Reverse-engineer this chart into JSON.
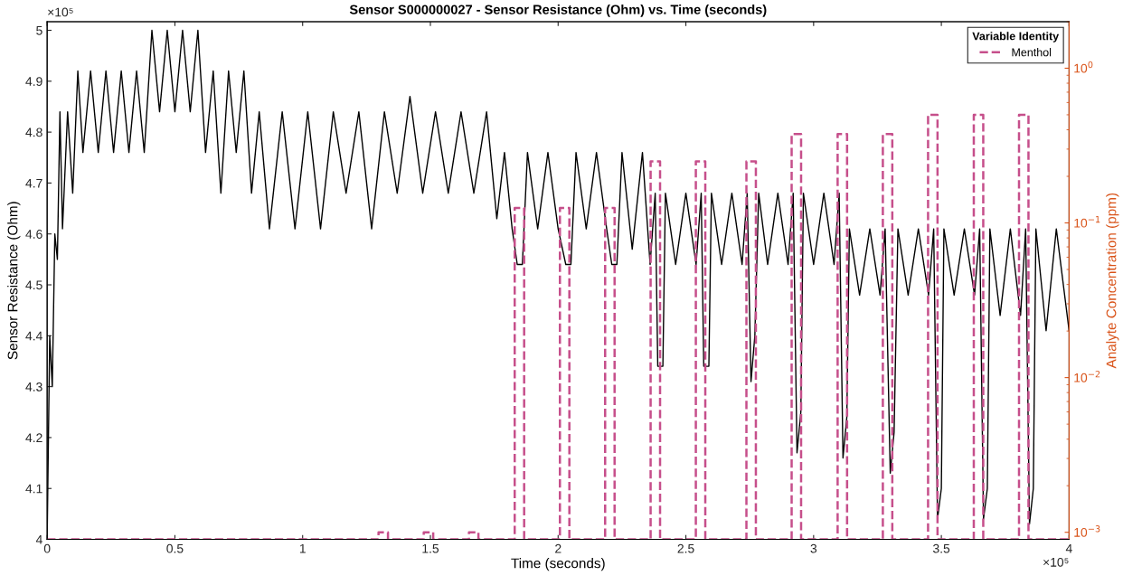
{
  "chart_data": {
    "type": "line",
    "title": "Sensor S000000027 - Sensor Resistance (Ohm) vs. Time (seconds)",
    "xlabel": "Time (seconds)",
    "ylabel": "Sensor Resistance (Ohm)",
    "y2label": "Analyte Concentration (ppm)",
    "legend_title": "Variable Identity",
    "legend": "top right",
    "grid": false,
    "log": "y2",
    "annotations": [
      "×10⁵",
      "×10⁵"
    ],
    "xlim": [
      0,
      4
    ],
    "xticks": [
      0,
      0.5,
      1,
      1.5,
      2,
      2.5,
      3,
      3.5,
      4
    ],
    "ylim": [
      4,
      5.017
    ],
    "yticks": [
      4,
      4.1,
      4.2,
      4.3,
      4.4,
      4.5,
      4.6,
      4.7,
      4.8,
      4.9,
      5
    ],
    "y2lim": [
      0.0009,
      2
    ],
    "y2ticks": [
      {
        "value": 0.001,
        "label": "10$^{−3}$"
      },
      {
        "value": 0.01,
        "label": "10$^{−2}$"
      },
      {
        "value": 0.1,
        "label": "10$^{−1}$"
      },
      {
        "value": 1,
        "label": "10$^{0}$"
      }
    ],
    "series": [
      {
        "color": "#000000",
        "line_style": "solid",
        "x": [
          0,
          0.01,
          0.02,
          0.03,
          0.04,
          0.05,
          0.06,
          0.08,
          0.1,
          0.12,
          0.14,
          0.17,
          0.2,
          0.23,
          0.26,
          0.29,
          0.32,
          0.35,
          0.38,
          0.41,
          0.44,
          0.47,
          0.5,
          0.53,
          0.56,
          0.59,
          0.62,
          0.65,
          0.68,
          0.71,
          0.74,
          0.77,
          0.8,
          0.83,
          0.87,
          0.92,
          0.97,
          1.02,
          1.07,
          1.12,
          1.17,
          1.22,
          1.27,
          1.32,
          1.37,
          1.42,
          1.47,
          1.52,
          1.57,
          1.62,
          1.67,
          1.72,
          1.76,
          1.79,
          1.82,
          1.84,
          1.86,
          1.88,
          1.92,
          1.96,
          2.0,
          2.03,
          2.05,
          2.07,
          2.11,
          2.15,
          2.19,
          2.21,
          2.23,
          2.25,
          2.29,
          2.33,
          2.36,
          2.38,
          2.39,
          2.41,
          2.42,
          2.46,
          2.5,
          2.54,
          2.56,
          2.57,
          2.59,
          2.6,
          2.64,
          2.68,
          2.72,
          2.74,
          2.755,
          2.77,
          2.785,
          2.82,
          2.86,
          2.9,
          2.92,
          2.935,
          2.95,
          2.96,
          3.0,
          3.04,
          3.08,
          3.1,
          3.115,
          3.13,
          3.14,
          3.18,
          3.22,
          3.26,
          3.28,
          3.3,
          3.315,
          3.33,
          3.37,
          3.41,
          3.45,
          3.47,
          3.485,
          3.5,
          3.51,
          3.55,
          3.59,
          3.63,
          3.65,
          3.665,
          3.68,
          3.69,
          3.73,
          3.77,
          3.81,
          3.83,
          3.845,
          3.86,
          3.87,
          3.91,
          3.95,
          4.0
        ],
        "values": [
          4.0,
          4.4,
          4.3,
          4.6,
          4.55,
          4.84,
          4.61,
          4.84,
          4.68,
          4.92,
          4.76,
          4.92,
          4.76,
          4.92,
          4.76,
          4.92,
          4.76,
          4.92,
          4.76,
          5.0,
          4.84,
          5.0,
          4.84,
          5.0,
          4.84,
          5.0,
          4.76,
          4.92,
          4.68,
          4.92,
          4.76,
          4.92,
          4.68,
          4.84,
          4.61,
          4.84,
          4.61,
          4.84,
          4.61,
          4.84,
          4.68,
          4.84,
          4.61,
          4.84,
          4.68,
          4.87,
          4.68,
          4.84,
          4.68,
          4.84,
          4.68,
          4.84,
          4.63,
          4.76,
          4.61,
          4.54,
          4.54,
          4.76,
          4.61,
          4.76,
          4.61,
          4.54,
          4.54,
          4.76,
          4.61,
          4.76,
          4.61,
          4.54,
          4.54,
          4.76,
          4.57,
          4.76,
          4.54,
          4.68,
          4.34,
          4.34,
          4.68,
          4.54,
          4.68,
          4.54,
          4.68,
          4.34,
          4.34,
          4.68,
          4.54,
          4.68,
          4.54,
          4.68,
          4.31,
          4.4,
          4.68,
          4.54,
          4.68,
          4.54,
          4.68,
          4.17,
          4.25,
          4.68,
          4.54,
          4.68,
          4.54,
          4.68,
          4.16,
          4.24,
          4.61,
          4.48,
          4.61,
          4.48,
          4.61,
          4.13,
          4.21,
          4.61,
          4.48,
          4.61,
          4.48,
          4.61,
          4.04,
          4.1,
          4.61,
          4.48,
          4.61,
          4.48,
          4.61,
          4.04,
          4.1,
          4.61,
          4.44,
          4.61,
          4.44,
          4.61,
          4.03,
          4.1,
          4.61,
          4.41,
          4.61,
          4.41
        ]
      },
      {
        "name": "Menthol",
        "color": "#c64f8b",
        "axis": "y2",
        "line_style": "dashed",
        "x": [
          0,
          1.297,
          1.297,
          1.334,
          1.334,
          1.474,
          1.474,
          1.511,
          1.511,
          1.651,
          1.651,
          1.688,
          1.688,
          1.83,
          1.83,
          1.867,
          1.867,
          2.007,
          2.007,
          2.044,
          2.044,
          2.184,
          2.184,
          2.221,
          2.221,
          2.362,
          2.362,
          2.399,
          2.399,
          2.539,
          2.539,
          2.576,
          2.576,
          2.737,
          2.737,
          2.774,
          2.774,
          2.914,
          2.914,
          2.951,
          2.951,
          3.094,
          3.094,
          3.131,
          3.131,
          3.271,
          3.271,
          3.308,
          3.308,
          3.448,
          3.448,
          3.485,
          3.485,
          3.627,
          3.627,
          3.664,
          3.664,
          3.804,
          3.804,
          3.841,
          3.841,
          4
        ],
        "values": [
          0.0009,
          0.0009,
          0.001,
          0.001,
          0.0009,
          0.0009,
          0.001,
          0.001,
          0.0009,
          0.0009,
          0.001,
          0.001,
          0.0009,
          0.0009,
          0.125,
          0.125,
          0.0009,
          0.0009,
          0.125,
          0.125,
          0.0009,
          0.0009,
          0.125,
          0.125,
          0.0009,
          0.0009,
          0.25,
          0.25,
          0.0009,
          0.0009,
          0.25,
          0.25,
          0.0009,
          0.0009,
          0.25,
          0.25,
          0.0009,
          0.0009,
          0.375,
          0.375,
          0.0009,
          0.0009,
          0.375,
          0.375,
          0.0009,
          0.0009,
          0.375,
          0.375,
          0.0009,
          0.0009,
          0.5,
          0.5,
          0.0009,
          0.0009,
          0.5,
          0.5,
          0.0009,
          0.0009,
          0.5,
          0.5,
          0.0009,
          0.0009
        ]
      }
    ]
  }
}
